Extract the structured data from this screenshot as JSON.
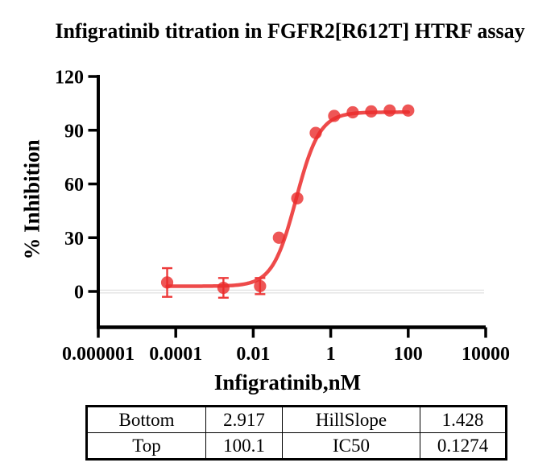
{
  "figure_title": "Infigratinib titration in FGFR2[R612T] HTRF assay",
  "chart_data": {
    "type": "scatter",
    "title": "Infigratinib titration in FGFR2[R612T] HTRF assay",
    "xlabel": "Infigratinib,nM",
    "ylabel": "% Inhibition",
    "x_scale": "log10",
    "xlim_log": [
      -6,
      4
    ],
    "ylim": [
      -20,
      120
    ],
    "grid": "zero-baseline-only",
    "legend": "none",
    "x_ticks": [
      {
        "value": 1e-06,
        "label": "0.000001"
      },
      {
        "value": 0.0001,
        "label": "0.0001"
      },
      {
        "value": 0.01,
        "label": "0.01"
      },
      {
        "value": 1,
        "label": "1"
      },
      {
        "value": 100,
        "label": "100"
      },
      {
        "value": 10000,
        "label": "10000"
      }
    ],
    "y_ticks": [
      {
        "value": 0,
        "label": "0"
      },
      {
        "value": 30,
        "label": "30"
      },
      {
        "value": 60,
        "label": "60"
      },
      {
        "value": 90,
        "label": "90"
      },
      {
        "value": 120,
        "label": "120"
      }
    ],
    "series": [
      {
        "name": "Infigratinib",
        "marker": "circle",
        "x": [
          6e-05,
          0.0017,
          0.015,
          0.046,
          0.137,
          0.41,
          1.23,
          3.7,
          11.1,
          33.3,
          100
        ],
        "y": [
          5,
          2,
          3,
          30,
          52,
          88.5,
          98,
          100,
          100.5,
          101,
          101
        ],
        "y_err": [
          8,
          5.5,
          4.5,
          0,
          0,
          0,
          0,
          0,
          0,
          0,
          0
        ]
      }
    ],
    "fit_curve": {
      "model": "4PL-Hill",
      "bottom": 2.917,
      "top": 100.1,
      "hillslope": 1.428,
      "ic50_nM": 0.1274,
      "x_range": [
        6e-05,
        100
      ]
    }
  },
  "colors": {
    "curve": "#ed3b3b",
    "marker": "#ea2c2c",
    "axis": "#000000",
    "zero_line": "#e3e3e3",
    "text": "#000000"
  },
  "fit_table": {
    "rows": [
      [
        "Bottom",
        "2.917",
        "HillSlope",
        "1.428"
      ],
      [
        "Top",
        "100.1",
        "IC50",
        "0.1274"
      ]
    ]
  }
}
